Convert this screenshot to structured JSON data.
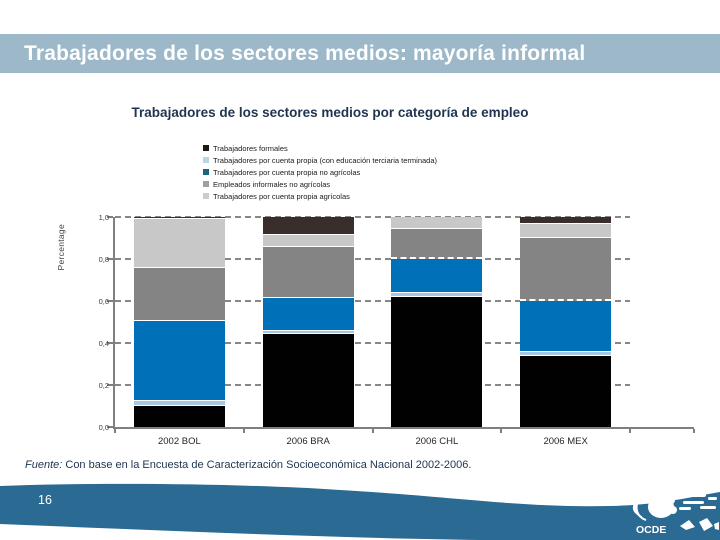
{
  "slide": {
    "title": "Trabajadores de los sectores medios: mayoría informal",
    "page_number": "16",
    "source_label": "Fuente:",
    "source_text": " Con base en la Encuesta de Caracterización Socioeconómica Nacional 2002-2006.",
    "logo_text": "OCDE"
  },
  "colors": {
    "title_bar_bg": "#9db9c9",
    "title_text": "#ffffff",
    "subtitle_text": "#1f3450",
    "source_text_color": "#1f3450",
    "footer_wave": "#2b6a92",
    "page_number_color": "#ffffff",
    "axis_color": "#7f7f7f",
    "gridline_color": "#878787",
    "tick_label_color": "#3f3f3f",
    "legend_text_color": "#1a1a1a"
  },
  "chart_data": {
    "type": "bar",
    "stacked": true,
    "title": "Trabajadores de los sectores medios por categoría de empleo",
    "ylabel": "Percentage",
    "ylim": [
      0,
      1
    ],
    "yticks": [
      "0,0",
      "0,2",
      "0,4",
      "0,6",
      "0,8",
      "1,0"
    ],
    "grid": "dashed-horizontal",
    "legend_position": "top",
    "categories": [
      "2002 BOL",
      "2006 BRA",
      "2006 CHL",
      "2006 MEX"
    ],
    "series": [
      {
        "id": "trabajadores-formales",
        "name": "Trabajadores formales",
        "color": "#010101",
        "legend_color": "#1a1a1a",
        "values": [
          0.1,
          0.445,
          0.62,
          0.34
        ]
      },
      {
        "id": "cuenta-propia-educacion-terciaria",
        "name": "Trabajadores por cuenta propia (con educación terciaria terminada)",
        "color": "#a5c9e5",
        "legend_color": "#b8d6e6",
        "values": [
          0.025,
          0.01,
          0.02,
          0.015
        ]
      },
      {
        "id": "cuenta-propia-no-agricolas",
        "name": "Trabajadores por cuenta propia no agrícolas",
        "color": "#0071b9",
        "legend_color": "#1b657f",
        "values": [
          0.38,
          0.16,
          0.16,
          0.245
        ]
      },
      {
        "id": "empleados-informales-no-agricolas",
        "name": "Empleados informales no agrícolas",
        "color": "#848484",
        "legend_color": "#99a1a4",
        "values": [
          0.25,
          0.24,
          0.145,
          0.3
        ]
      },
      {
        "id": "cuenta-propia-agricolas",
        "name": "Trabajadores por cuenta propia agrícolas",
        "color": "#c8c8c8",
        "legend_color": "#c6ced2",
        "values": [
          0.235,
          0.06,
          0.055,
          0.065
        ]
      },
      {
        "id": "unlabeled-top-segment",
        "name": "",
        "in_legend": false,
        "color": "#392e2c",
        "values": [
          0.01,
          0.085,
          0.0,
          0.035
        ]
      }
    ]
  }
}
